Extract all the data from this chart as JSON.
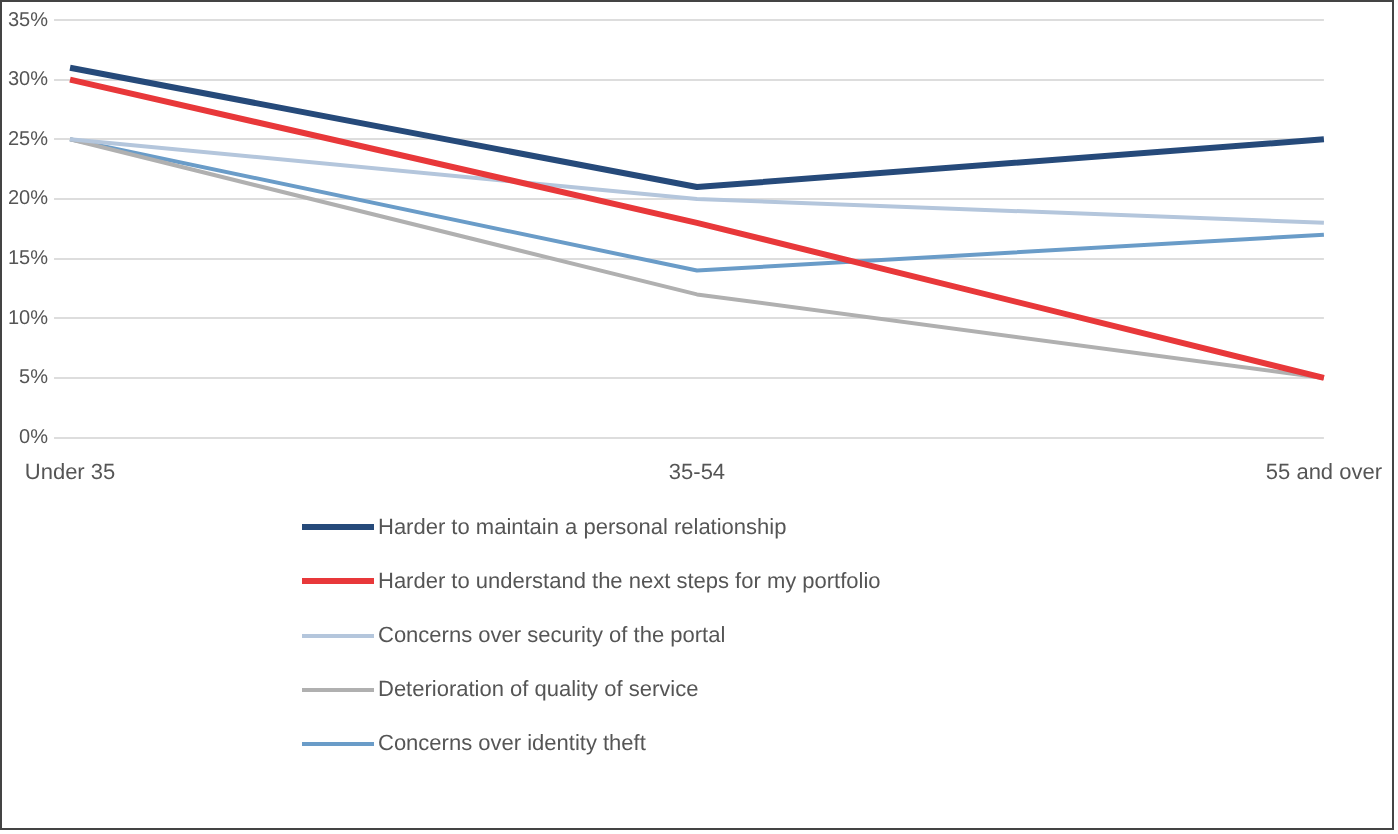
{
  "chart_data": {
    "type": "line",
    "categories": [
      "Under 35",
      "35-54",
      "55 and over"
    ],
    "series": [
      {
        "name": "Harder to maintain a personal relationship",
        "color": "#264a7a",
        "values": [
          31,
          21,
          25
        ]
      },
      {
        "name": "Harder to understand the next steps for my portfolio",
        "color": "#e8383a",
        "values": [
          30,
          18,
          5
        ]
      },
      {
        "name": "Concerns over security of the portal",
        "color": "#b4c6dc",
        "values": [
          25,
          20,
          18
        ]
      },
      {
        "name": "Deterioration of quality of service",
        "color": "#b0b0b0",
        "values": [
          25,
          12,
          5
        ]
      },
      {
        "name": "Concerns over identity theft",
        "color": "#6a9cc8",
        "values": [
          25,
          14,
          17
        ]
      }
    ],
    "ylim": [
      0,
      35
    ],
    "yticks": [
      {
        "value": 0,
        "label": "0%"
      },
      {
        "value": 5,
        "label": "5%"
      },
      {
        "value": 10,
        "label": "10%"
      },
      {
        "value": 15,
        "label": "15%"
      },
      {
        "value": 20,
        "label": "20%"
      },
      {
        "value": 25,
        "label": "25%"
      },
      {
        "value": 30,
        "label": "30%"
      },
      {
        "value": 35,
        "label": "35%"
      }
    ],
    "grid": "y",
    "legend": "bottom",
    "marker": "none",
    "line_style": "solid"
  }
}
